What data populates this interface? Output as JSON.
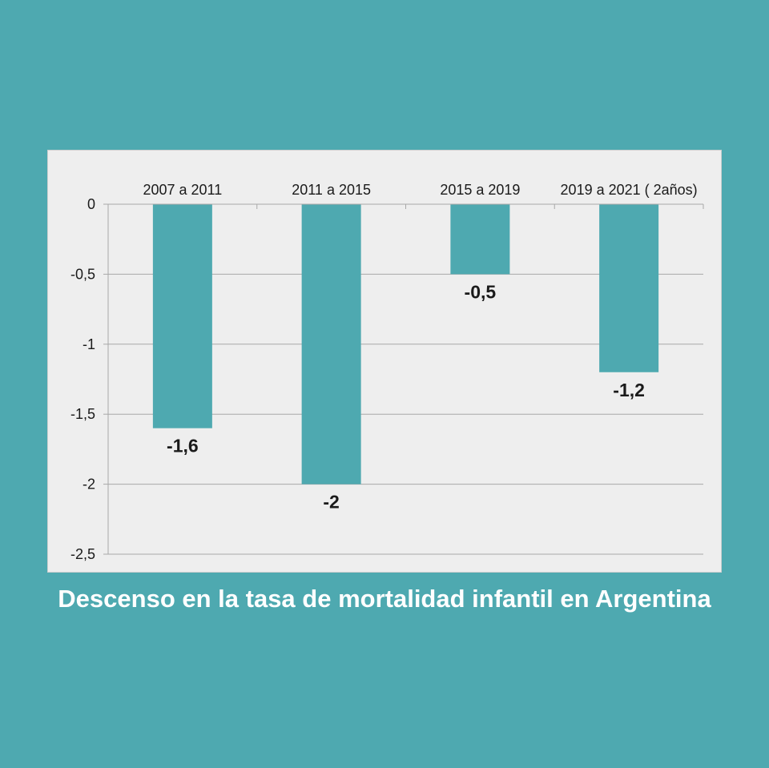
{
  "caption": "Descenso en la tasa de mortalidad infantil en Argentina",
  "colors": {
    "background": "#4ea9b0",
    "panel": "#eeeeee",
    "bar": "#4ea9b0",
    "grid": "#a8a8a8",
    "text": "#1a1a1a",
    "caption": "#ffffff"
  },
  "chart_data": {
    "type": "bar",
    "categories": [
      "2007 a 2011",
      "2011 a 2015",
      "2015 a 2019",
      "2019 a 2021 ( 2años)"
    ],
    "values": [
      -1.6,
      -2,
      -0.5,
      -1.2
    ],
    "value_labels": [
      "-1,6",
      "-2",
      "-0,5",
      "-1,2"
    ],
    "y_ticks": [
      0,
      -0.5,
      -1,
      -1.5,
      -2,
      -2.5
    ],
    "y_tick_labels": [
      "0",
      "-0,5",
      "-1",
      "-1,5",
      "-2",
      "-2,5"
    ],
    "ylim": [
      -2.5,
      0
    ],
    "category_axis_position": "top",
    "grid": true,
    "legend": "none"
  }
}
